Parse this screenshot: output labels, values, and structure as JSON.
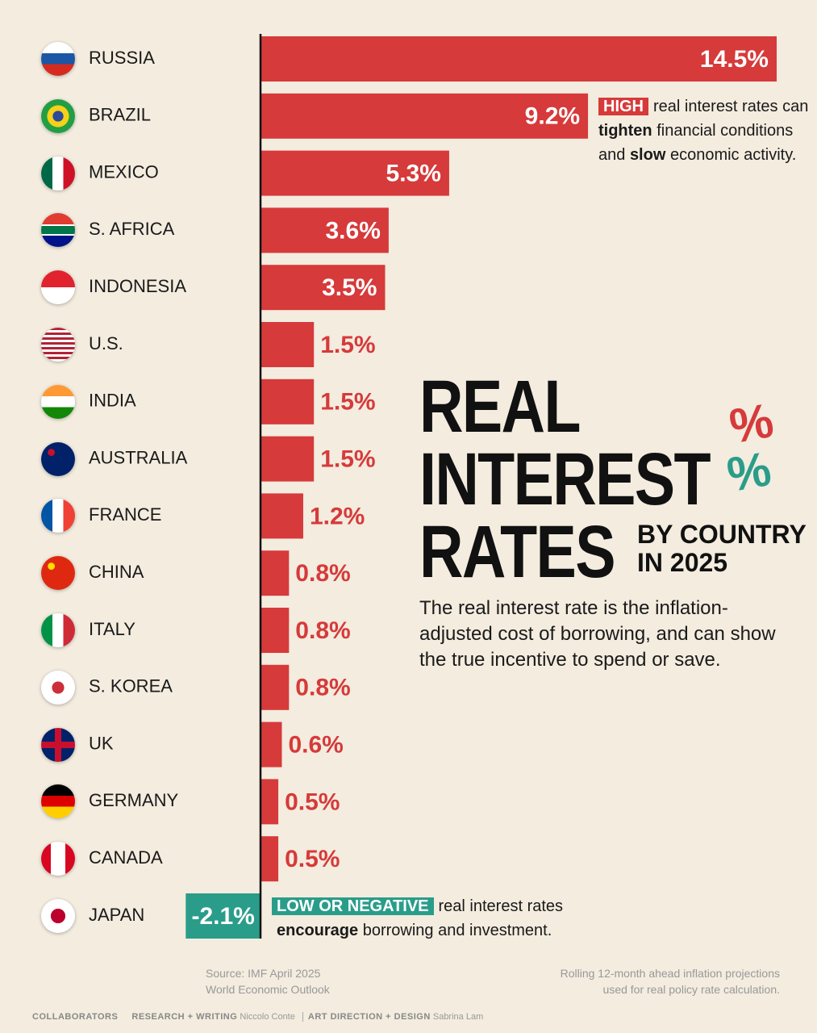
{
  "chart_data": {
    "type": "bar",
    "orientation": "horizontal",
    "title": [
      "REAL",
      "INTEREST",
      "RATES"
    ],
    "subtitle": [
      "BY COUNTRY",
      "IN 2025"
    ],
    "description": "The real interest rate is the inflation-adjusted cost of borrowing, and can show the true incentive to spend or save.",
    "categories": [
      "RUSSIA",
      "BRAZIL",
      "MEXICO",
      "S. AFRICA",
      "INDONESIA",
      "U.S.",
      "INDIA",
      "AUSTRALIA",
      "FRANCE",
      "CHINA",
      "ITALY",
      "S. KOREA",
      "UK",
      "GERMANY",
      "CANADA",
      "JAPAN"
    ],
    "values": [
      14.5,
      9.2,
      5.3,
      3.6,
      3.5,
      1.5,
      1.5,
      1.5,
      1.2,
      0.8,
      0.8,
      0.8,
      0.6,
      0.5,
      0.5,
      -2.1
    ],
    "value_labels": [
      "14.5%",
      "9.2%",
      "5.3%",
      "3.6%",
      "3.5%",
      "1.5%",
      "1.5%",
      "1.5%",
      "1.2%",
      "0.8%",
      "0.8%",
      "0.8%",
      "0.6%",
      "0.5%",
      "0.5%",
      "-2.1%"
    ],
    "color": "#d63a3a",
    "negative_color": "#2a9d8a",
    "annotations": {
      "high": {
        "badge": "HIGH",
        "line1": "real interest rates can",
        "line2_bold": "tighten",
        "line2": "financial conditions",
        "line3_pre": "and",
        "line3_bold": "slow",
        "line3": "economic activity."
      },
      "low": {
        "badge": "LOW OR NEGATIVE",
        "line1": "real interest rates",
        "line2_bold": "encourage",
        "line2": "borrowing and investment."
      }
    },
    "source": [
      "Source: IMF April 2025",
      "World Economic Outlook"
    ],
    "note": [
      "Rolling 12-month ahead inflation projections",
      "used for real policy rate calculation."
    ],
    "credits": {
      "label": "COLLABORATORS",
      "role1": "RESEARCH + WRITING",
      "name1": "Niccolo Conte",
      "role2": "ART DIRECTION + DESIGN",
      "name2": "Sabrina Lam"
    }
  }
}
